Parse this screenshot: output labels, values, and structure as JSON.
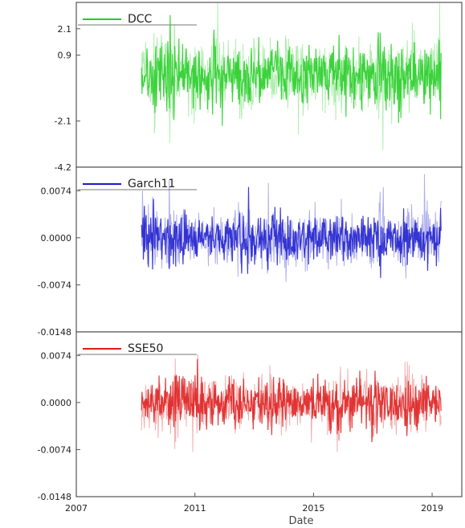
{
  "chart_data": [
    {
      "type": "line",
      "series": [
        {
          "name": "DCC",
          "color": "#22cc22"
        }
      ],
      "xlim": [
        2007,
        2020
      ],
      "ylim": [
        -4.2,
        3.3
      ],
      "yticks": [
        2.1,
        0.9,
        -2.1,
        -4.2
      ],
      "ytick_labels": [
        "2.1",
        "0.9",
        "-2.1",
        "-4.2"
      ],
      "data_range": [
        2009.2,
        2019.3
      ],
      "amplitude": 1.7,
      "grid": false
    },
    {
      "type": "line",
      "series": [
        {
          "name": "Garch11",
          "color": "#1a1acc"
        }
      ],
      "xlim": [
        2007,
        2020
      ],
      "ylim": [
        -0.0148,
        0.0111
      ],
      "yticks": [
        0.0074,
        0.0,
        -0.0074,
        -0.0148
      ],
      "ytick_labels": [
        "0.0074",
        "0.0000",
        "-0.0074",
        "-0.0148"
      ],
      "data_range": [
        2009.2,
        2019.3
      ],
      "amplitude": 0.0045,
      "grid": false
    },
    {
      "type": "line",
      "series": [
        {
          "name": "SSE50",
          "color": "#dd1a1a"
        }
      ],
      "xlim": [
        2007,
        2020
      ],
      "ylim": [
        -0.0148,
        0.0111
      ],
      "yticks": [
        0.0074,
        0.0,
        -0.0074,
        -0.0148
      ],
      "ytick_labels": [
        "0.0074",
        "0.0000",
        "-0.0074",
        "-0.0148"
      ],
      "data_range": [
        2009.2,
        2019.3
      ],
      "amplitude": 0.0045,
      "grid": false
    }
  ],
  "x_axis": {
    "ticks": [
      2007,
      2011,
      2015,
      2019
    ],
    "tick_labels": [
      "2007",
      "2011",
      "2015",
      "2019"
    ],
    "label": "Date"
  }
}
